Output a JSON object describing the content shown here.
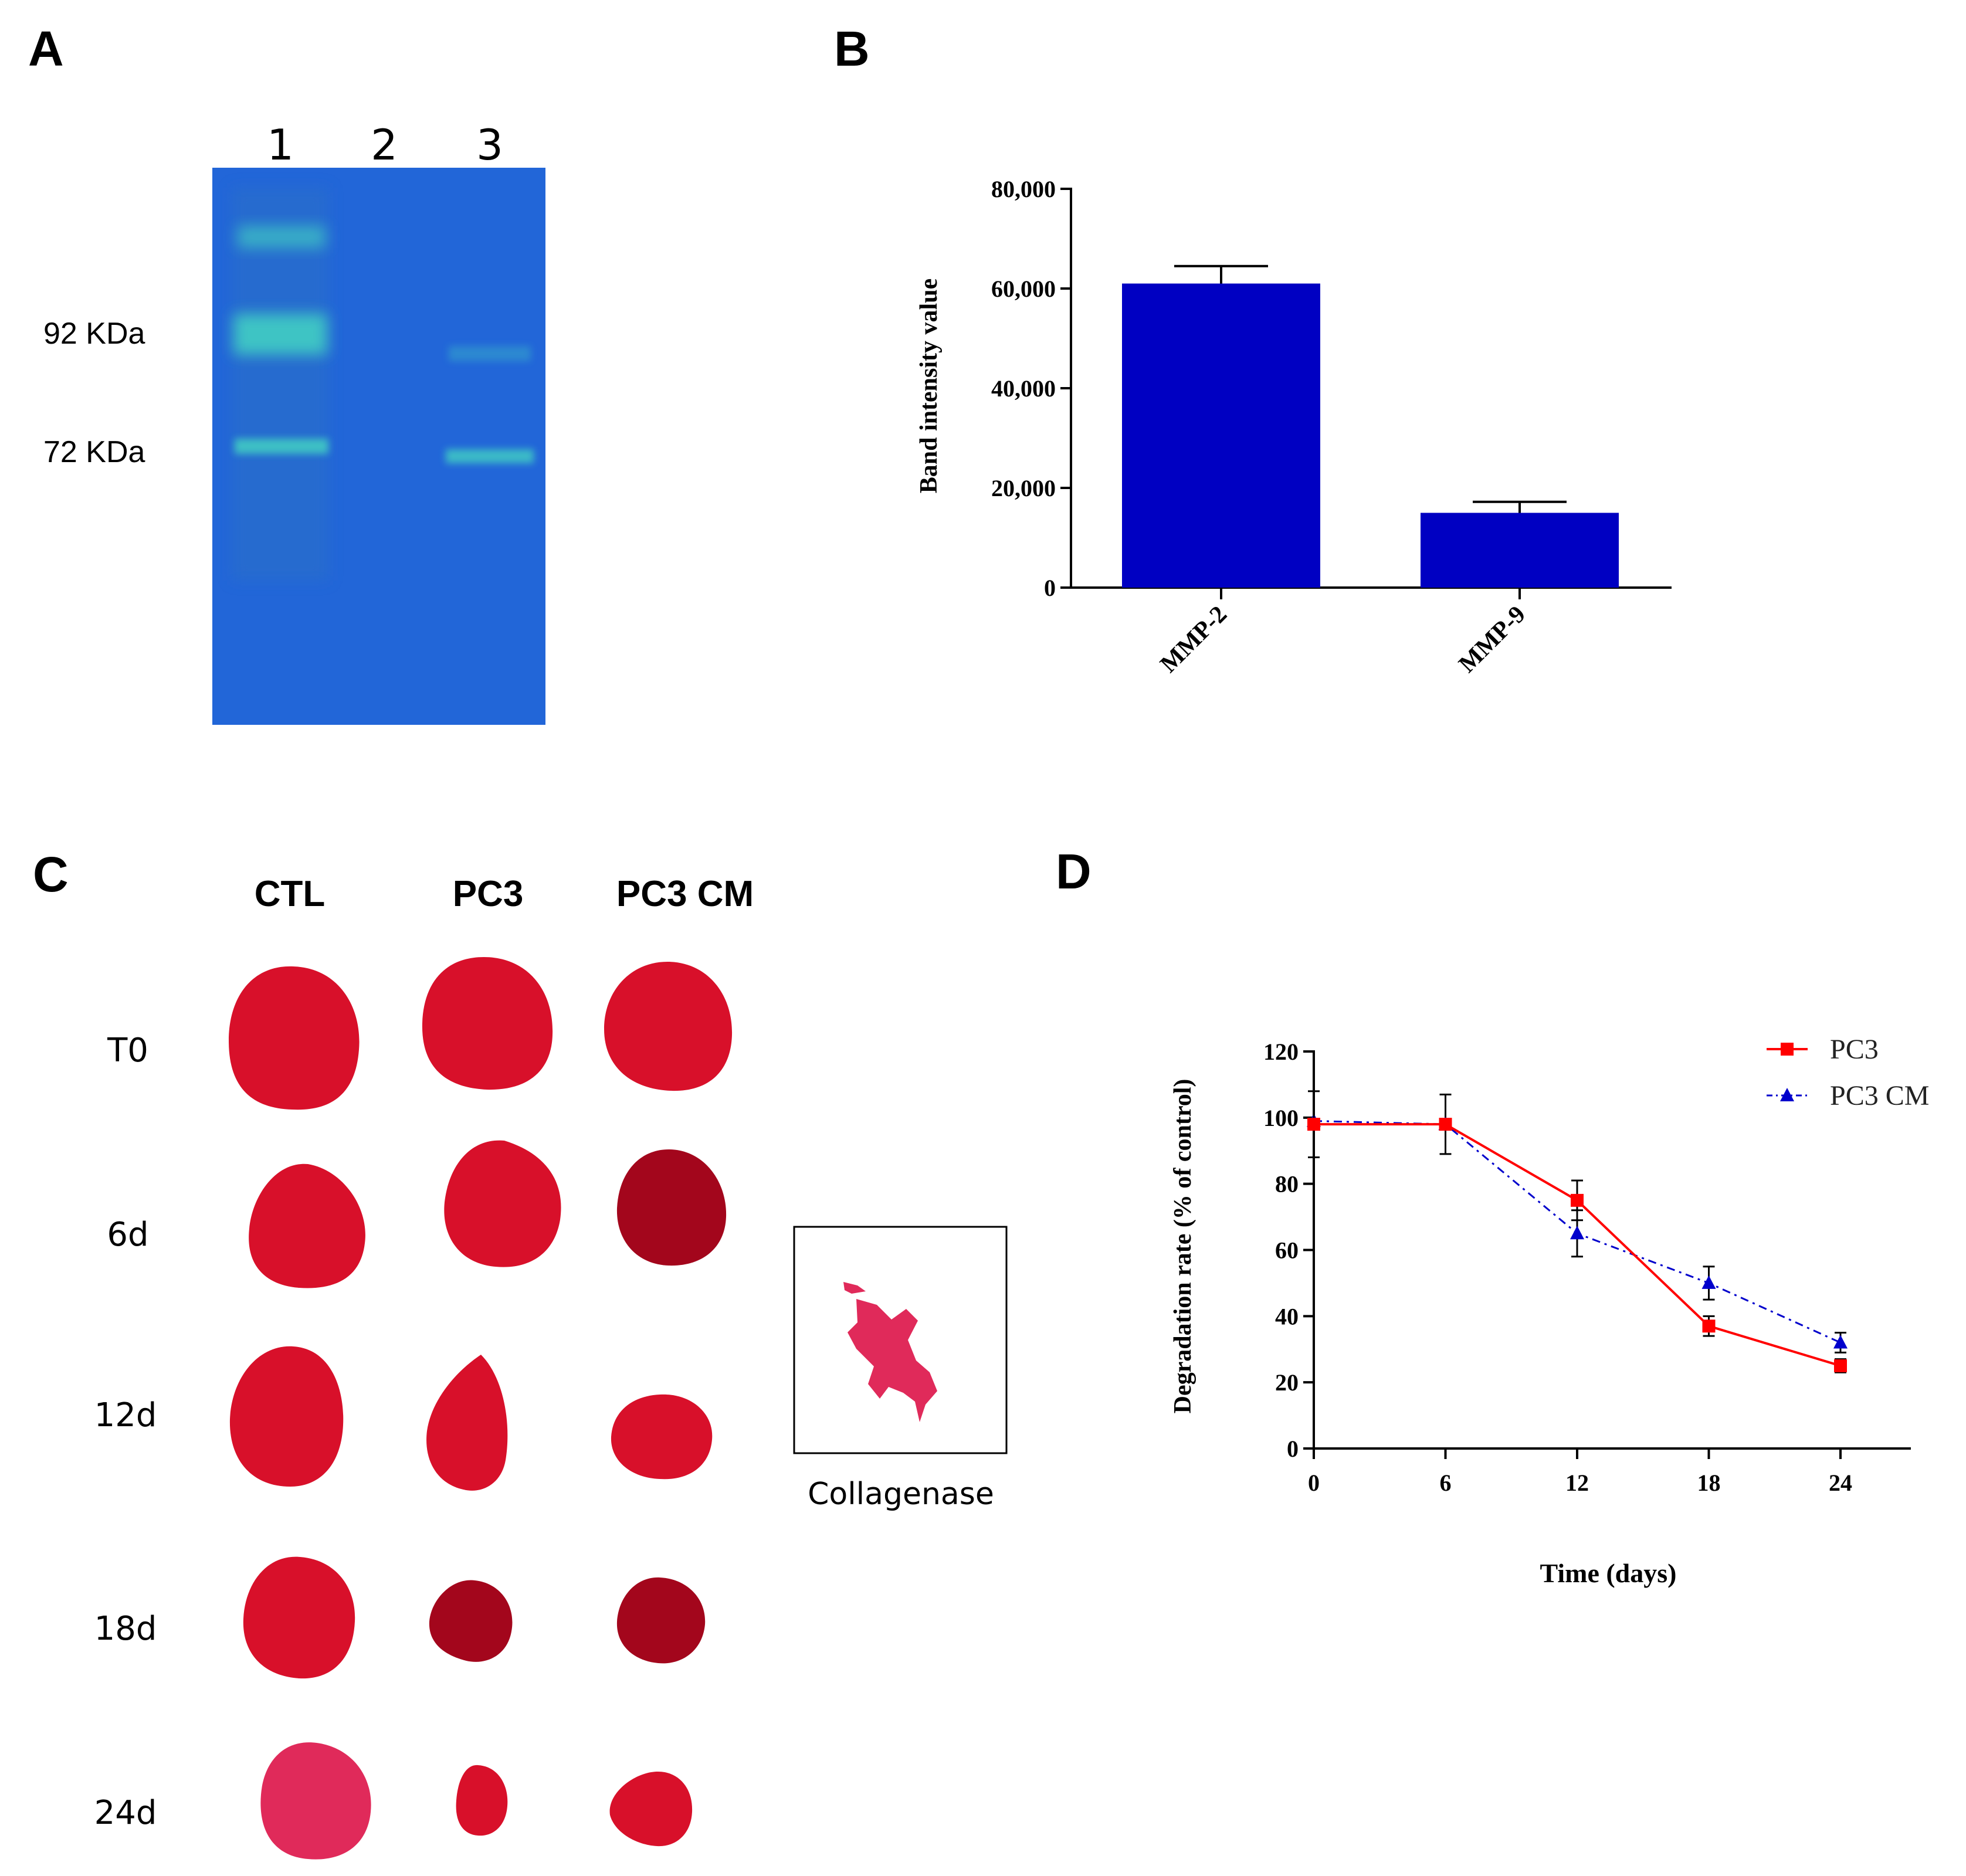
{
  "panels": {
    "a": {
      "label": "A"
    },
    "b": {
      "label": "B"
    },
    "c": {
      "label": "C"
    },
    "d": {
      "label": "D"
    }
  },
  "gel": {
    "lane_labels": [
      "1",
      "2",
      "3"
    ],
    "markers": [
      "92 KDa",
      "72 KDa"
    ],
    "background_color": "#2266d8",
    "band_color": "#3fc9c4"
  },
  "scaffolds": {
    "columns": [
      "CTL",
      "PC3",
      "PC3 CM"
    ],
    "rows": [
      "T0",
      "6d",
      "12d",
      "18d",
      "24d"
    ],
    "collagenase_label": "Collagenase",
    "tissue_color": "#d8102a",
    "dark_tissue_color": "#a3061c",
    "pink_tissue_color": "#e02a5a"
  },
  "chart_data": [
    {
      "id": "B",
      "type": "bar",
      "title": "",
      "categories": [
        "MMP-2",
        "MMP-9"
      ],
      "values": [
        61000,
        15000
      ],
      "errors": [
        3500,
        2200
      ],
      "xlabel": "",
      "ylabel": "Band intensity value",
      "ylim": [
        0,
        80000
      ],
      "yticks": [
        0,
        20000,
        40000,
        60000,
        80000
      ],
      "ytick_labels": [
        "0",
        "20,000",
        "40,000",
        "60,000",
        "80,000"
      ],
      "bar_color": "#0000c2"
    },
    {
      "id": "D",
      "type": "line",
      "title": "",
      "x": [
        0,
        6,
        12,
        18,
        24
      ],
      "xtick_labels": [
        "0",
        "6",
        "12",
        "18",
        "24"
      ],
      "xlabel": "Time (days)",
      "ylabel": "Degradation rate (% of control)",
      "xlim": [
        0,
        27
      ],
      "ylim": [
        0,
        120
      ],
      "yticks": [
        0,
        20,
        40,
        60,
        80,
        100,
        120
      ],
      "ytick_labels": [
        "0",
        "20",
        "40",
        "60",
        "80",
        "100",
        "120"
      ],
      "legend_position": "top-right",
      "series": [
        {
          "name": "PC3",
          "values": [
            98,
            98,
            75,
            37,
            25
          ],
          "errors": [
            10,
            0,
            6,
            3,
            2
          ],
          "color": "#ff0000",
          "marker": "square",
          "dash": "solid"
        },
        {
          "name": "PC3 CM",
          "values": [
            99,
            98,
            65,
            50,
            32
          ],
          "errors": [
            0,
            9,
            7,
            5,
            3
          ],
          "color": "#0000cc",
          "marker": "triangle",
          "dash": "dashdot"
        }
      ]
    }
  ]
}
